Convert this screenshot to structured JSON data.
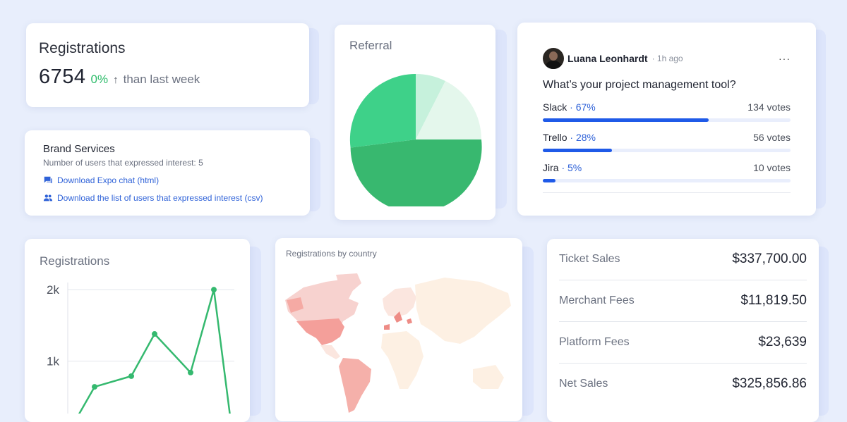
{
  "registrations_card": {
    "title": "Registrations",
    "count": "6754",
    "change_pct": "0%",
    "change_arrow": "↑",
    "comparison": "than last week"
  },
  "brand_services": {
    "title": "Brand Services",
    "subtitle": "Number of users that expressed interest: 5",
    "links": [
      {
        "icon": "chat-icon",
        "label": "Download Expo chat (html)"
      },
      {
        "icon": "users-icon",
        "label": "Download the list of users that expressed interest (csv)"
      }
    ]
  },
  "referral": {
    "title": "Referral",
    "colors": [
      "#38b86f",
      "#3ed189",
      "#c6f1dc",
      "#e4f7ec"
    ]
  },
  "poll": {
    "author": "Luana Leonhardt",
    "time": "1h ago",
    "more": "···",
    "question": "What’s your project management tool?",
    "options": [
      {
        "name": "Slack",
        "pct": "67%",
        "votes": "134 votes",
        "fraction": 0.67
      },
      {
        "name": "Trello",
        "pct": "28%",
        "votes": "56 votes",
        "fraction": 0.28
      },
      {
        "name": "Jira",
        "pct": "5%",
        "votes": "10 votes",
        "fraction": 0.05
      }
    ]
  },
  "chart_data": {
    "type": "line",
    "title": "Registrations",
    "y_ticks": [
      "2k",
      "1k"
    ],
    "y_tick_values": [
      2000,
      1000
    ],
    "ylim": [
      0,
      2100
    ],
    "values": [
      0,
      640,
      790,
      1380,
      840,
      2000,
      0
    ],
    "color": "#35b96f",
    "grid": true
  },
  "map_card": {
    "title": "Registrations by country"
  },
  "financials": [
    {
      "label": "Ticket Sales",
      "value": "$337,700.00"
    },
    {
      "label": "Merchant Fees",
      "value": "$11,819.50"
    },
    {
      "label": "Platform Fees",
      "value": "$23,639"
    },
    {
      "label": "Net Sales",
      "value": "$325,856.86"
    }
  ]
}
